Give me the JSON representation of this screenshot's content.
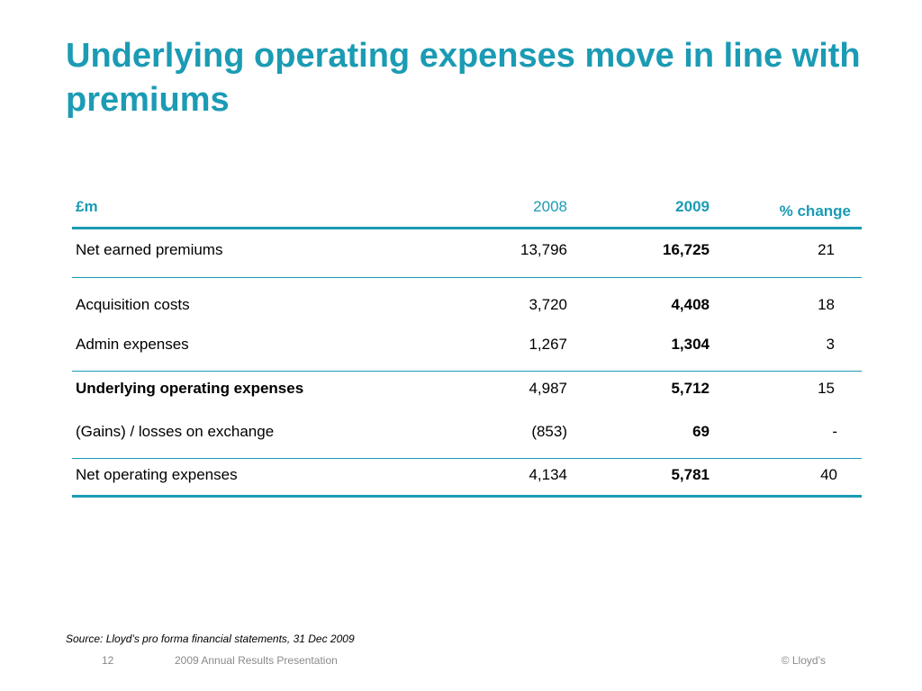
{
  "slide": {
    "title": "Underlying operating expenses move in line with premiums",
    "accent_color": "#1b9bb4"
  },
  "table": {
    "header": {
      "label": "£m",
      "col_2008": "2008",
      "col_2009": "2009",
      "col_change": "% change"
    },
    "rows": [
      {
        "label": "Net earned premiums",
        "v2008": "13,796",
        "v2009": "16,725",
        "change": "21",
        "label_bold": false
      },
      {
        "label": "Acquisition costs",
        "v2008": "3,720",
        "v2009": "4,408",
        "change": "18",
        "label_bold": false
      },
      {
        "label": "Admin expenses",
        "v2008": "1,267",
        "v2009": "1,304",
        "change": "3",
        "label_bold": false
      },
      {
        "label": "Underlying operating expenses",
        "v2008": "4,987",
        "v2009": "5,712",
        "change": "15",
        "label_bold": true
      },
      {
        "label": "(Gains) / losses on exchange",
        "v2008": "(853)",
        "v2009": "69",
        "change": "-",
        "label_bold": false
      },
      {
        "label": "Net operating expenses",
        "v2008": "4,134",
        "v2009": "5,781",
        "change": "40",
        "label_bold": false
      }
    ]
  },
  "source_note": "Source: Lloyd’s pro forma financial statements, 31 Dec 2009",
  "footer": {
    "page_number": "12",
    "presentation": "2009 Annual Results Presentation",
    "copyright": "© Lloyd’s"
  }
}
